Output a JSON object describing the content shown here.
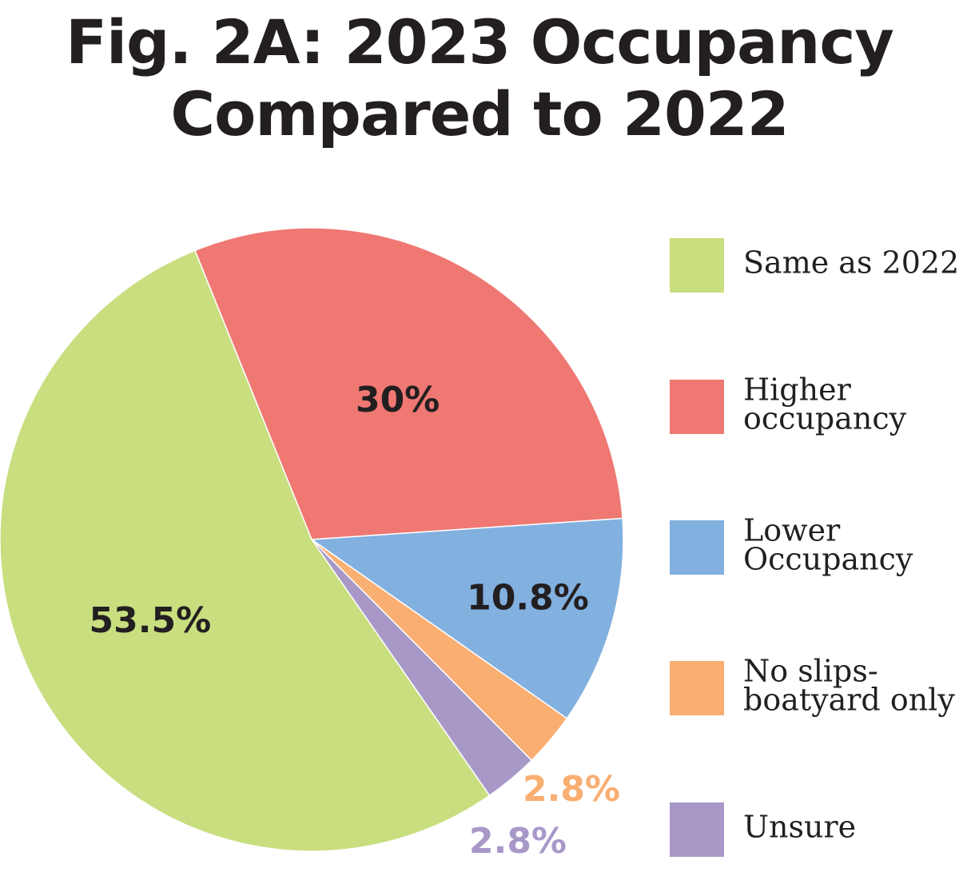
{
  "chart_data": {
    "type": "pie",
    "title_line1": "Fig. 2A: 2023 Occupancy",
    "title_line2": "Compared to 2022",
    "legend_position": "right",
    "slices": [
      {
        "label_lines": [
          "Same as 2022"
        ],
        "value": 53.5,
        "value_label": "53.5%",
        "color": "#c8de7f",
        "label_color": "#231f20"
      },
      {
        "label_lines": [
          "Higher",
          "occupancy"
        ],
        "value": 30,
        "value_label": "30%",
        "color": "#ef7872",
        "label_color": "#231f20"
      },
      {
        "label_lines": [
          "Lower",
          "Occupancy"
        ],
        "value": 10.8,
        "value_label": "10.8%",
        "color": "#82b0df",
        "label_color": "#231f20"
      },
      {
        "label_lines": [
          "No slips-",
          "boatyard only"
        ],
        "value": 2.8,
        "value_label": "2.8%",
        "color": "#f9ae72",
        "label_color": "#f9ae72"
      },
      {
        "label_lines": [
          "Unsure"
        ],
        "value": 2.8,
        "value_label": "2.8%",
        "color": "#a898c8",
        "label_color": "#a898c8"
      }
    ]
  }
}
